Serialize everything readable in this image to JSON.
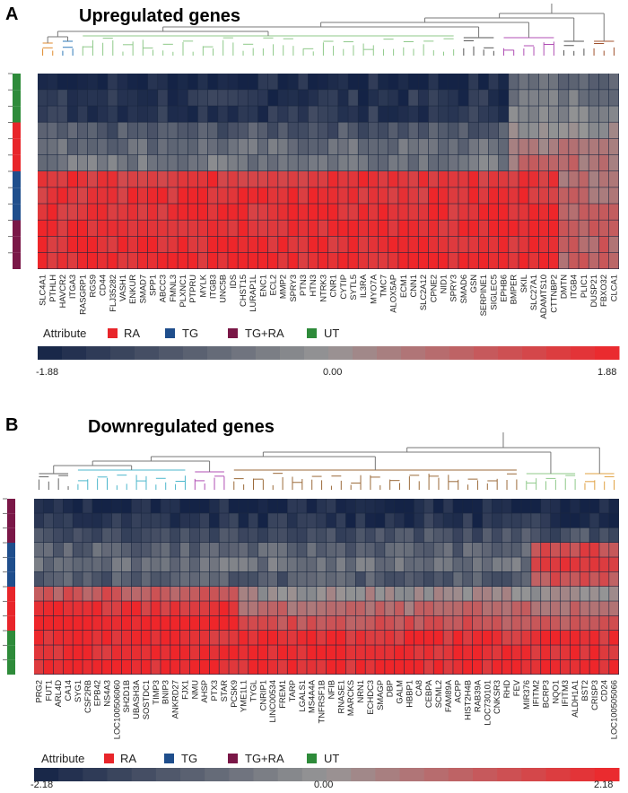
{
  "chart_data": [
    {
      "type": "heatmap",
      "panel_letter": "A",
      "title": "Upregulated genes",
      "attribute_label": "Attribute",
      "attributes": [
        {
          "name": "RA",
          "color": "#e8252a"
        },
        {
          "name": "TG",
          "color": "#1f4e8c"
        },
        {
          "name": "TG+RA",
          "color": "#7a1747"
        },
        {
          "name": "UT",
          "color": "#2e8b3a"
        }
      ],
      "sample_groups": [
        "UT",
        "UT",
        "UT",
        "RA",
        "RA",
        "RA",
        "TG",
        "TG",
        "TG",
        "TG+RA",
        "TG+RA",
        "TG+RA"
      ],
      "genes": [
        "SLC4A1",
        "PTHLH",
        "HAVCR2",
        "ITGA3",
        "RASGRP1",
        "RGS9",
        "CD44",
        "FLJ35282",
        "VASH1",
        "ENKUR",
        "SMAD7",
        "SPP1",
        "ABCC3",
        "FMNL3",
        "PLXNC1",
        "PTPRU",
        "MYLK",
        "ITGB3",
        "UNC5B",
        "IDS",
        "CHST15",
        "LURAP1L",
        "ENC1",
        "ECL2",
        "MMP2",
        "SPRY3",
        "PTN3",
        "HTN3",
        "NTRK3",
        "CNR1",
        "CYTIP",
        "SYTL5",
        "IL3RA",
        "MYO7A",
        "TMC7",
        "ALOX5AP",
        "ECM1",
        "CNN1",
        "SLC2A12",
        "CPNE2",
        "NID1",
        "SPRY3",
        "SMAD6",
        "GSN",
        "SERPINE1",
        "SIGLEC5",
        "EPHB6",
        "BMPER",
        "SKIL",
        "SLC27A1",
        "ADAMTS10",
        "CTTNBP2",
        "DMTN",
        "ITGB4",
        "PLIC1",
        "DUSP21",
        "FBXO32",
        "CLCA1"
      ],
      "scale": {
        "min": -1.88,
        "mid": 0.0,
        "max": 1.88,
        "min_label": "-1.88",
        "mid_label": "0.00",
        "max_label": "1.88"
      }
    },
    {
      "type": "heatmap",
      "panel_letter": "B",
      "title": "Downregulated genes",
      "attribute_label": "Attribute",
      "attributes": [
        {
          "name": "RA",
          "color": "#e8252a"
        },
        {
          "name": "TG",
          "color": "#1f4e8c"
        },
        {
          "name": "TG+RA",
          "color": "#7a1747"
        },
        {
          "name": "UT",
          "color": "#2e8b3a"
        }
      ],
      "sample_groups": [
        "TG+RA",
        "TG+RA",
        "TG+RA",
        "TG",
        "TG",
        "TG",
        "RA",
        "RA",
        "RA",
        "UT",
        "UT",
        "UT"
      ],
      "genes": [
        "PRG2",
        "FUT1",
        "ARL4D",
        "CA14",
        "SYG1",
        "CSF2RB",
        "EPB42",
        "NS4A3",
        "LOC100506060",
        "SH2D1B",
        "UBASH3A",
        "SOSTDC1",
        "TIMP3",
        "BNIP3",
        "ANKRD27",
        "FJX1",
        "NMU",
        "AHSP",
        "PTX3",
        "STAR",
        "PCSK9",
        "YME1L1",
        "TYGL",
        "CNRIP1",
        "LINC00534",
        "FREM1",
        "TARP",
        "LGALS1",
        "MS4A4A",
        "TNFRSF1B",
        "NFIB",
        "RNASE1",
        "MARCKS",
        "NRN1",
        "ECHDC3",
        "SMAGP",
        "DBP",
        "GALM",
        "HBBP1",
        "CA8",
        "CEBPA",
        "SCML2",
        "FAM89A",
        "ACPP",
        "HIST2H4B",
        "RAB39A",
        "LOC730101",
        "CNKSR3",
        "RHD",
        "FEV",
        "MIR376",
        "IFITM2",
        "BCRP3",
        "NQO1",
        "IFITM3",
        "ALDH1A1",
        "BST2",
        "CRISP3",
        "CD24",
        "LOC100505066"
      ],
      "scale": {
        "min": -2.18,
        "mid": 0.0,
        "max": 2.18,
        "min_label": "-2.18",
        "mid_label": "0.00",
        "max_label": "2.18"
      }
    }
  ]
}
